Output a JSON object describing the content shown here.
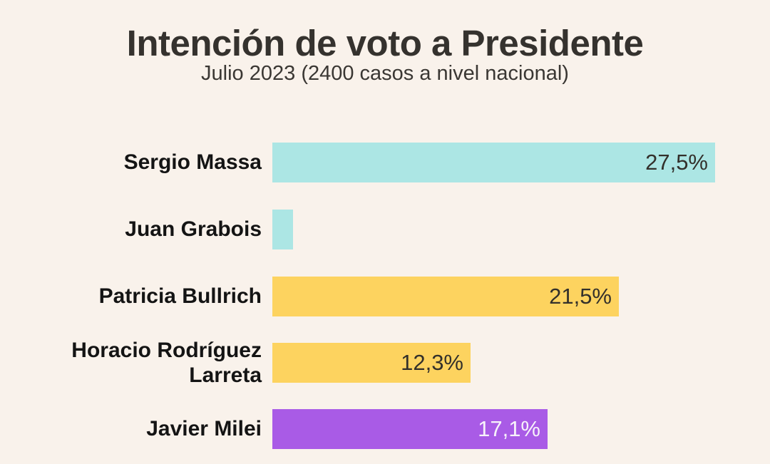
{
  "title": "Intención de voto a Presidente",
  "subtitle": "Julio 2023 (2400 casos a nivel nacional)",
  "colors": {
    "background": "#F9F2EB",
    "title_text": "#35322E",
    "subtitle_text": "#3A3733",
    "candidate_label_text": "#141414",
    "value_text_dark": "#33302B",
    "value_text_light": "#F7F2FA",
    "bar_cyan": "#ACE6E4",
    "bar_yellow": "#FDD35F",
    "bar_purple": "#A95BE6"
  },
  "chart_data": {
    "type": "bar",
    "orientation": "horizontal",
    "title": "Intención de voto a Presidente",
    "subtitle": "Julio 2023 (2400 casos a nivel nacional)",
    "unit": "%",
    "decimal_separator": ",",
    "xlim": [
      0,
      27.5
    ],
    "grid": false,
    "legend": false,
    "categories": [
      "Sergio Massa",
      "Juan Grabois",
      "Patricia Bullrich",
      "Horacio Rodríguez Larreta",
      "Javier Milei"
    ],
    "values": [
      27.5,
      1.3,
      21.5,
      12.3,
      17.1
    ],
    "rows": [
      {
        "name": "Sergio Massa",
        "value": 27.5,
        "value_label": "27,5%",
        "color": "#ACE6E4",
        "value_label_color": "#33302B"
      },
      {
        "name": "Juan Grabois",
        "value": 1.3,
        "value_label": "",
        "color": "#ACE6E4",
        "value_label_color": "#33302B"
      },
      {
        "name": "Patricia Bullrich",
        "value": 21.5,
        "value_label": "21,5%",
        "color": "#FDD35F",
        "value_label_color": "#33302B"
      },
      {
        "name": "Horacio Rodríguez Larreta",
        "value": 12.3,
        "value_label": "12,3%",
        "color": "#FDD35F",
        "value_label_color": "#33302B"
      },
      {
        "name": "Javier Milei",
        "value": 17.1,
        "value_label": "17,1%",
        "color": "#A95BE6",
        "value_label_color": "#F7F2FA"
      }
    ]
  }
}
